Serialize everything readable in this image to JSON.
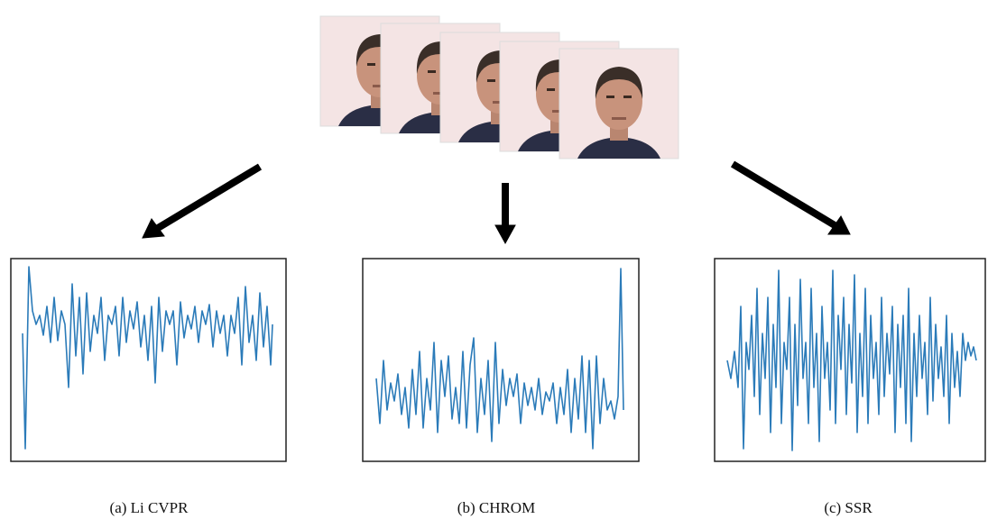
{
  "panels": [
    {
      "caption": "(a) Li CVPR"
    },
    {
      "caption": "(b) CHROM"
    },
    {
      "caption": "(c) SSR"
    }
  ]
}
